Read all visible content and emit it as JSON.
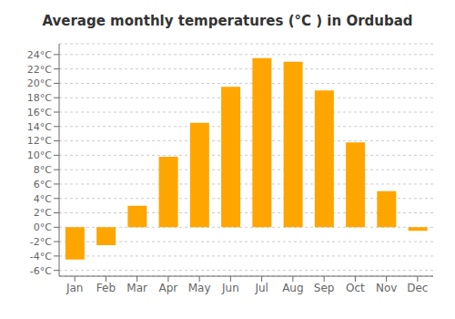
{
  "chart_data": {
    "type": "bar",
    "title": "Average monthly temperatures (°C ) in Ordubad",
    "categories": [
      "Jan",
      "Feb",
      "Mar",
      "Apr",
      "May",
      "Jun",
      "Jul",
      "Aug",
      "Sep",
      "Oct",
      "Nov",
      "Dec"
    ],
    "values": [
      -4.5,
      -2.5,
      3.0,
      9.8,
      14.5,
      19.5,
      23.5,
      23.0,
      19.0,
      11.8,
      5.0,
      -0.5
    ],
    "color": "#FFA500",
    "ylim": [
      -6.8,
      25.5
    ],
    "yticks": [
      {
        "value": -6,
        "label": "-6°C"
      },
      {
        "value": -4,
        "label": "-4°C"
      },
      {
        "value": -2,
        "label": "-2°C"
      },
      {
        "value": 0,
        "label": "0°C"
      },
      {
        "value": 2,
        "label": "2°C"
      },
      {
        "value": 4,
        "label": "4°C"
      },
      {
        "value": 6,
        "label": "6°C"
      },
      {
        "value": 8,
        "label": "8°C"
      },
      {
        "value": 10,
        "label": "10°C"
      },
      {
        "value": 12,
        "label": "12°C"
      },
      {
        "value": 14,
        "label": "14°C"
      },
      {
        "value": 16,
        "label": "16°C"
      },
      {
        "value": 18,
        "label": "18°C"
      },
      {
        "value": 20,
        "label": "20°C"
      },
      {
        "value": 22,
        "label": "22°C"
      },
      {
        "value": 24,
        "label": "24°C"
      }
    ],
    "grid": true
  }
}
